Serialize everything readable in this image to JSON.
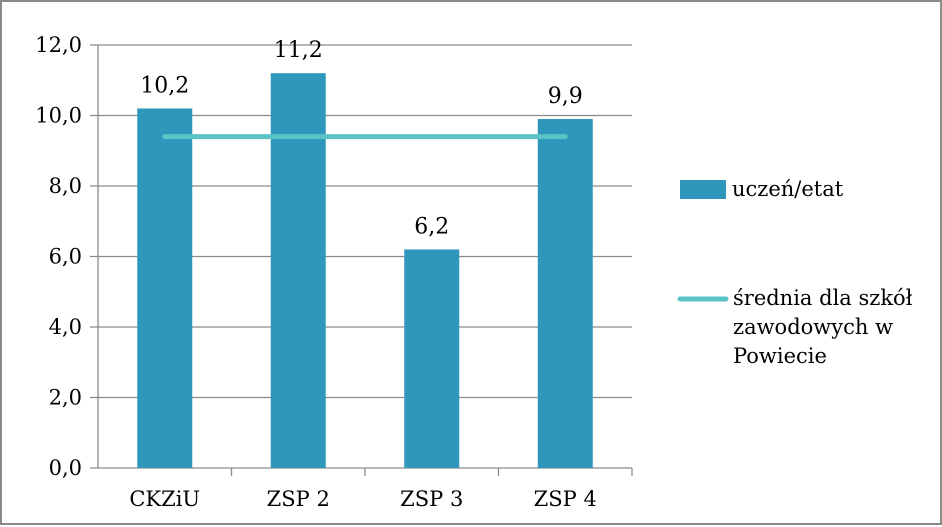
{
  "chart_data": {
    "type": "bar",
    "categories": [
      "CKZiU",
      "ZSP 2",
      "ZSP 3",
      "ZSP 4"
    ],
    "series": [
      {
        "name": "uczeń/etat",
        "type": "bar",
        "values": [
          10.2,
          11.2,
          6.2,
          9.9
        ],
        "data_labels": [
          "10,2",
          "11,2",
          "6,2",
          "9,9"
        ]
      },
      {
        "name_lines": [
          "średnia dla szkół",
          "zawodowych w",
          "Powiecie"
        ],
        "type": "line",
        "value": 9.4
      }
    ],
    "y_ticks": [
      {
        "value": 0,
        "label": "0,0"
      },
      {
        "value": 2,
        "label": "2,0"
      },
      {
        "value": 4,
        "label": "4,0"
      },
      {
        "value": 6,
        "label": "6,0"
      },
      {
        "value": 8,
        "label": "8,0"
      },
      {
        "value": 10,
        "label": "10,0"
      },
      {
        "value": 12,
        "label": "12,0"
      }
    ],
    "ylim": [
      0,
      12
    ],
    "grid": true,
    "legend_position": "right",
    "colors": {
      "bar": "#2e97bb",
      "line": "#5bc2c6",
      "grid": "#8c8c8c"
    }
  }
}
